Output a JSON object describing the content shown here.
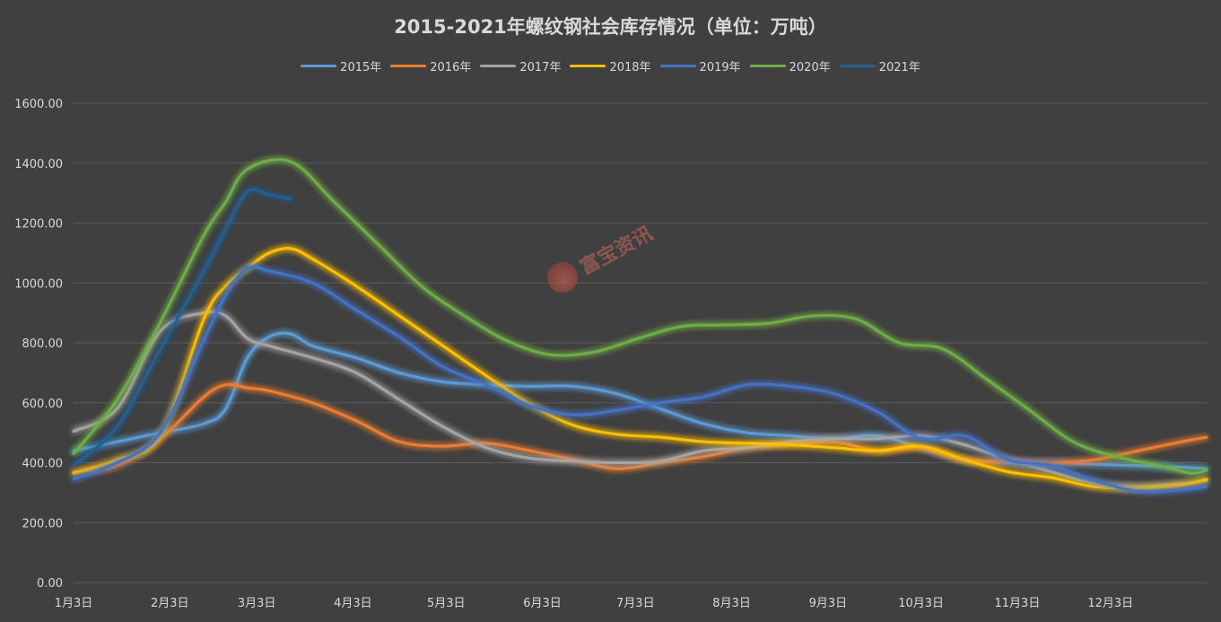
{
  "chart_data": {
    "type": "line",
    "title": "2015-2021年螺纹钢社会库存情况（单位：万吨）",
    "xlabel": "",
    "ylabel": "",
    "ylim": [
      0,
      1600
    ],
    "yticks": [
      "0.00",
      "200.00",
      "400.00",
      "600.00",
      "800.00",
      "1000.00",
      "1200.00",
      "1400.00",
      "1600.00"
    ],
    "xticks": [
      "1月3日",
      "2月3日",
      "3月3日",
      "4月3日",
      "5月3日",
      "6月3日",
      "7月3日",
      "8月3日",
      "9月3日",
      "10月3日",
      "11月3日",
      "12月3日"
    ],
    "xlim_day_of_year": [
      3,
      368
    ],
    "grid": true,
    "legend_position": "top",
    "series": [
      {
        "name": "2015年",
        "color": "#5b9bd5",
        "points": [
          [
            3,
            440
          ],
          [
            17,
            470
          ],
          [
            31,
            500
          ],
          [
            45,
            530
          ],
          [
            52,
            580
          ],
          [
            59,
            750
          ],
          [
            66,
            820
          ],
          [
            73,
            830
          ],
          [
            80,
            790
          ],
          [
            94,
            750
          ],
          [
            108,
            700
          ],
          [
            122,
            670
          ],
          [
            136,
            660
          ],
          [
            150,
            655
          ],
          [
            164,
            655
          ],
          [
            178,
            630
          ],
          [
            192,
            580
          ],
          [
            206,
            530
          ],
          [
            220,
            500
          ],
          [
            234,
            490
          ],
          [
            248,
            480
          ],
          [
            262,
            490
          ],
          [
            276,
            450
          ],
          [
            290,
            410
          ],
          [
            304,
            400
          ],
          [
            318,
            400
          ],
          [
            332,
            395
          ],
          [
            346,
            390
          ],
          [
            360,
            385
          ],
          [
            368,
            380
          ]
        ]
      },
      {
        "name": "2016年",
        "color": "#ed7d31",
        "points": [
          [
            3,
            370
          ],
          [
            17,
            390
          ],
          [
            31,
            480
          ],
          [
            45,
            620
          ],
          [
            52,
            660
          ],
          [
            59,
            650
          ],
          [
            66,
            640
          ],
          [
            80,
            600
          ],
          [
            94,
            540
          ],
          [
            108,
            470
          ],
          [
            122,
            455
          ],
          [
            136,
            465
          ],
          [
            150,
            440
          ],
          [
            164,
            410
          ],
          [
            178,
            380
          ],
          [
            192,
            400
          ],
          [
            206,
            420
          ],
          [
            220,
            450
          ],
          [
            234,
            460
          ],
          [
            248,
            470
          ],
          [
            262,
            440
          ],
          [
            276,
            450
          ],
          [
            290,
            410
          ],
          [
            304,
            405
          ],
          [
            318,
            400
          ],
          [
            332,
            410
          ],
          [
            346,
            440
          ],
          [
            360,
            470
          ],
          [
            368,
            485
          ]
        ]
      },
      {
        "name": "2017年",
        "color": "#a5a5a5",
        "points": [
          [
            3,
            505
          ],
          [
            17,
            580
          ],
          [
            31,
            840
          ],
          [
            45,
            900
          ],
          [
            52,
            890
          ],
          [
            59,
            815
          ],
          [
            66,
            790
          ],
          [
            80,
            750
          ],
          [
            94,
            700
          ],
          [
            108,
            610
          ],
          [
            122,
            520
          ],
          [
            136,
            450
          ],
          [
            150,
            415
          ],
          [
            164,
            405
          ],
          [
            178,
            400
          ],
          [
            192,
            405
          ],
          [
            206,
            440
          ],
          [
            220,
            450
          ],
          [
            234,
            470
          ],
          [
            248,
            480
          ],
          [
            262,
            480
          ],
          [
            276,
            490
          ],
          [
            290,
            460
          ],
          [
            304,
            410
          ],
          [
            318,
            370
          ],
          [
            332,
            330
          ],
          [
            346,
            320
          ],
          [
            360,
            330
          ],
          [
            368,
            340
          ]
        ]
      },
      {
        "name": "2018年",
        "color": "#ffc000",
        "points": [
          [
            3,
            365
          ],
          [
            17,
            410
          ],
          [
            31,
            490
          ],
          [
            45,
            880
          ],
          [
            52,
            990
          ],
          [
            59,
            1050
          ],
          [
            66,
            1100
          ],
          [
            73,
            1115
          ],
          [
            80,
            1080
          ],
          [
            94,
            990
          ],
          [
            108,
            890
          ],
          [
            122,
            790
          ],
          [
            136,
            690
          ],
          [
            150,
            595
          ],
          [
            164,
            525
          ],
          [
            178,
            495
          ],
          [
            192,
            485
          ],
          [
            206,
            470
          ],
          [
            220,
            465
          ],
          [
            234,
            460
          ],
          [
            248,
            450
          ],
          [
            262,
            440
          ],
          [
            276,
            455
          ],
          [
            290,
            410
          ],
          [
            304,
            370
          ],
          [
            318,
            350
          ],
          [
            332,
            320
          ],
          [
            346,
            315
          ],
          [
            360,
            325
          ],
          [
            368,
            345
          ]
        ]
      },
      {
        "name": "2019年",
        "color": "#4472c4",
        "points": [
          [
            3,
            345
          ],
          [
            17,
            400
          ],
          [
            31,
            500
          ],
          [
            45,
            810
          ],
          [
            52,
            960
          ],
          [
            59,
            1050
          ],
          [
            66,
            1040
          ],
          [
            80,
            1000
          ],
          [
            94,
            910
          ],
          [
            108,
            820
          ],
          [
            122,
            720
          ],
          [
            136,
            660
          ],
          [
            150,
            590
          ],
          [
            164,
            560
          ],
          [
            178,
            575
          ],
          [
            192,
            600
          ],
          [
            206,
            620
          ],
          [
            220,
            660
          ],
          [
            234,
            655
          ],
          [
            248,
            630
          ],
          [
            262,
            570
          ],
          [
            276,
            480
          ],
          [
            290,
            490
          ],
          [
            304,
            410
          ],
          [
            318,
            390
          ],
          [
            332,
            340
          ],
          [
            346,
            305
          ],
          [
            360,
            310
          ],
          [
            368,
            320
          ]
        ]
      },
      {
        "name": "2020年",
        "color": "#70ad47",
        "points": [
          [
            3,
            430
          ],
          [
            17,
            610
          ],
          [
            31,
            870
          ],
          [
            45,
            1160
          ],
          [
            52,
            1270
          ],
          [
            59,
            1380
          ],
          [
            73,
            1405
          ],
          [
            87,
            1270
          ],
          [
            101,
            1130
          ],
          [
            115,
            990
          ],
          [
            129,
            890
          ],
          [
            143,
            805
          ],
          [
            157,
            760
          ],
          [
            171,
            770
          ],
          [
            185,
            815
          ],
          [
            199,
            855
          ],
          [
            213,
            860
          ],
          [
            227,
            865
          ],
          [
            241,
            890
          ],
          [
            255,
            880
          ],
          [
            269,
            800
          ],
          [
            283,
            780
          ],
          [
            297,
            680
          ],
          [
            311,
            575
          ],
          [
            325,
            470
          ],
          [
            339,
            420
          ],
          [
            353,
            390
          ],
          [
            363,
            365
          ],
          [
            368,
            375
          ]
        ]
      },
      {
        "name": "2021年",
        "color": "#255e91",
        "points": [
          [
            3,
            390
          ],
          [
            17,
            520
          ],
          [
            31,
            780
          ],
          [
            45,
            1040
          ],
          [
            52,
            1180
          ],
          [
            59,
            1305
          ],
          [
            66,
            1295
          ],
          [
            73,
            1280
          ]
        ]
      }
    ]
  },
  "watermark": {
    "text": "富宝资讯"
  }
}
